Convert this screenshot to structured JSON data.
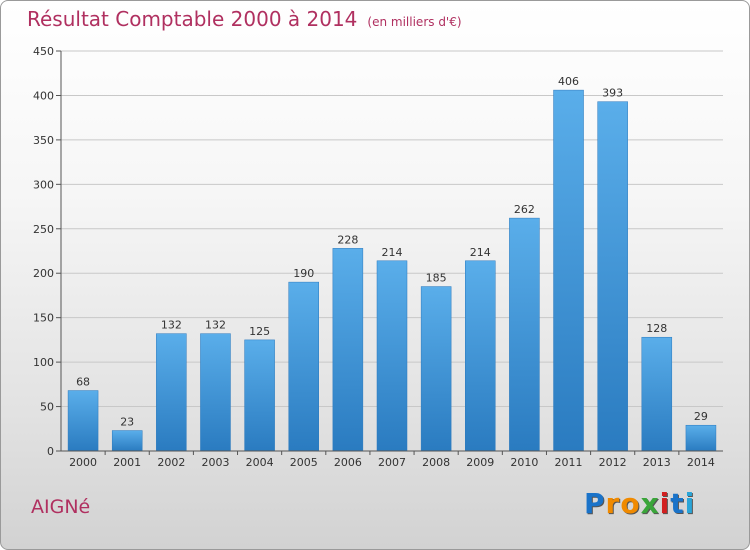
{
  "chart_data": {
    "type": "bar",
    "title": "Résultat Comptable 2000 à 2014",
    "subtitle": "(en milliers d'€)",
    "categories": [
      "2000",
      "2001",
      "2002",
      "2003",
      "2004",
      "2005",
      "2006",
      "2007",
      "2008",
      "2009",
      "2010",
      "2011",
      "2012",
      "2013",
      "2014"
    ],
    "values": [
      68,
      23,
      132,
      132,
      125,
      190,
      228,
      214,
      185,
      214,
      262,
      406,
      393,
      128,
      29
    ],
    "yticks": [
      0,
      50,
      100,
      150,
      200,
      250,
      300,
      350,
      400,
      450
    ],
    "ylim": [
      0,
      450
    ],
    "grid": true,
    "bar_color": "#3d8fd1",
    "title_color": "#b03060"
  },
  "commune": "AIGNé",
  "logo": {
    "letters": [
      "P",
      "r",
      "o",
      "x",
      "i",
      "t",
      "i"
    ],
    "colors": [
      "#1a73c9",
      "#f08a00",
      "#f08a00",
      "#3aa53a",
      "#d22020",
      "#1a73c9",
      "#2aa5d8"
    ]
  }
}
